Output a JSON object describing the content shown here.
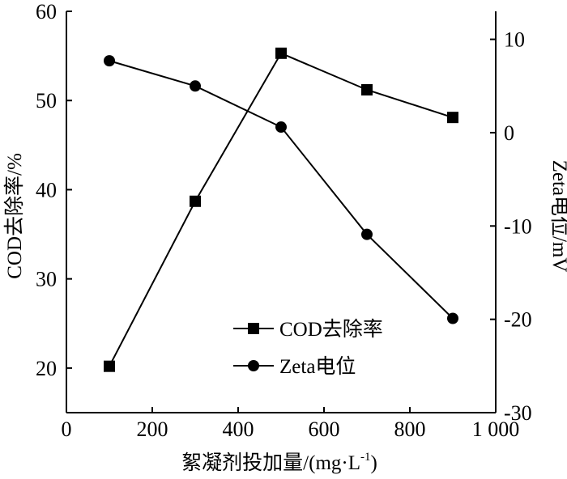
{
  "chart_data": {
    "type": "line",
    "xlabel": "絮凝剂投加量/(mg·L",
    "xlabel_sup": "-1",
    "xlabel_tail": ")",
    "ylabel": "COD去除率/%",
    "y2label": "Zeta电位/mV",
    "xlim": [
      0,
      1000
    ],
    "ylim": [
      15,
      60
    ],
    "y2lim": [
      -30,
      13
    ],
    "xticks": [
      0,
      200,
      400,
      600,
      800,
      1000
    ],
    "xtick_labels": [
      "0",
      "200",
      "400",
      "600",
      "800",
      "1 000"
    ],
    "yticks": [
      20,
      30,
      40,
      50,
      60
    ],
    "y2ticks": [
      -30,
      -20,
      -10,
      0,
      10
    ],
    "y2tick_labels": [
      "-30",
      "-20",
      "-10",
      "0",
      "10"
    ],
    "grid": false,
    "legend_position": "lower-center",
    "series": [
      {
        "name": "COD去除率",
        "axis": "left",
        "marker": "square",
        "x": [
          100,
          300,
          500,
          700,
          900
        ],
        "values": [
          20.2,
          38.7,
          55.3,
          51.2,
          48.1
        ]
      },
      {
        "name": "Zeta电位",
        "axis": "right",
        "marker": "circle",
        "x": [
          100,
          300,
          500,
          700,
          900
        ],
        "values": [
          7.7,
          5.0,
          0.6,
          -10.9,
          -19.9
        ]
      }
    ]
  }
}
